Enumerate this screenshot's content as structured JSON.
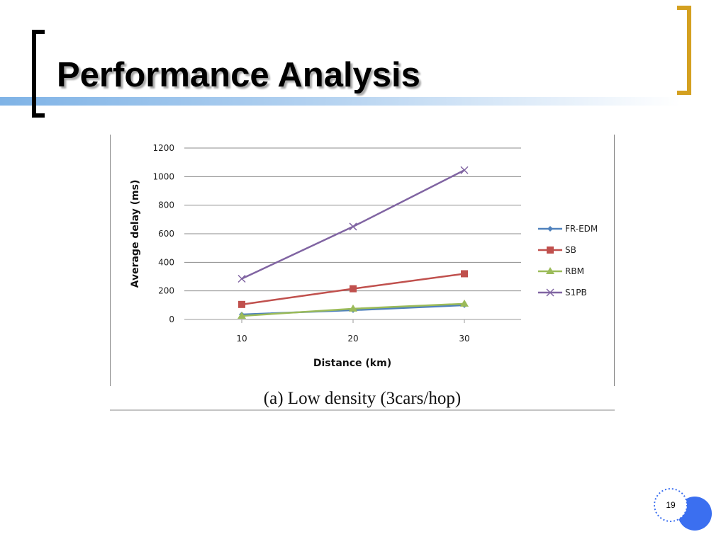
{
  "slide": {
    "title": "Performance Analysis",
    "page_number": "19"
  },
  "chart_data": {
    "type": "line",
    "caption": "(a) Low density (3cars/hop)",
    "xlabel": "Distance (km)",
    "ylabel": "Average delay (ms)",
    "categories": [
      "10",
      "20",
      "30"
    ],
    "yticks": [
      "0",
      "200",
      "400",
      "600",
      "800",
      "1000",
      "1200"
    ],
    "ylim": [
      0,
      1200
    ],
    "grid": true,
    "legend_position": "right",
    "series": [
      {
        "name": "FR-EDM",
        "values": [
          35,
          65,
          100
        ],
        "color": "#4f81bd",
        "marker": "diamond"
      },
      {
        "name": "SB",
        "values": [
          105,
          215,
          320
        ],
        "color": "#c0504d",
        "marker": "square"
      },
      {
        "name": "RBM",
        "values": [
          25,
          75,
          110
        ],
        "color": "#9bbb59",
        "marker": "triangle"
      },
      {
        "name": "S1PB",
        "values": [
          285,
          650,
          1045
        ],
        "color": "#8064a2",
        "marker": "x"
      }
    ]
  }
}
